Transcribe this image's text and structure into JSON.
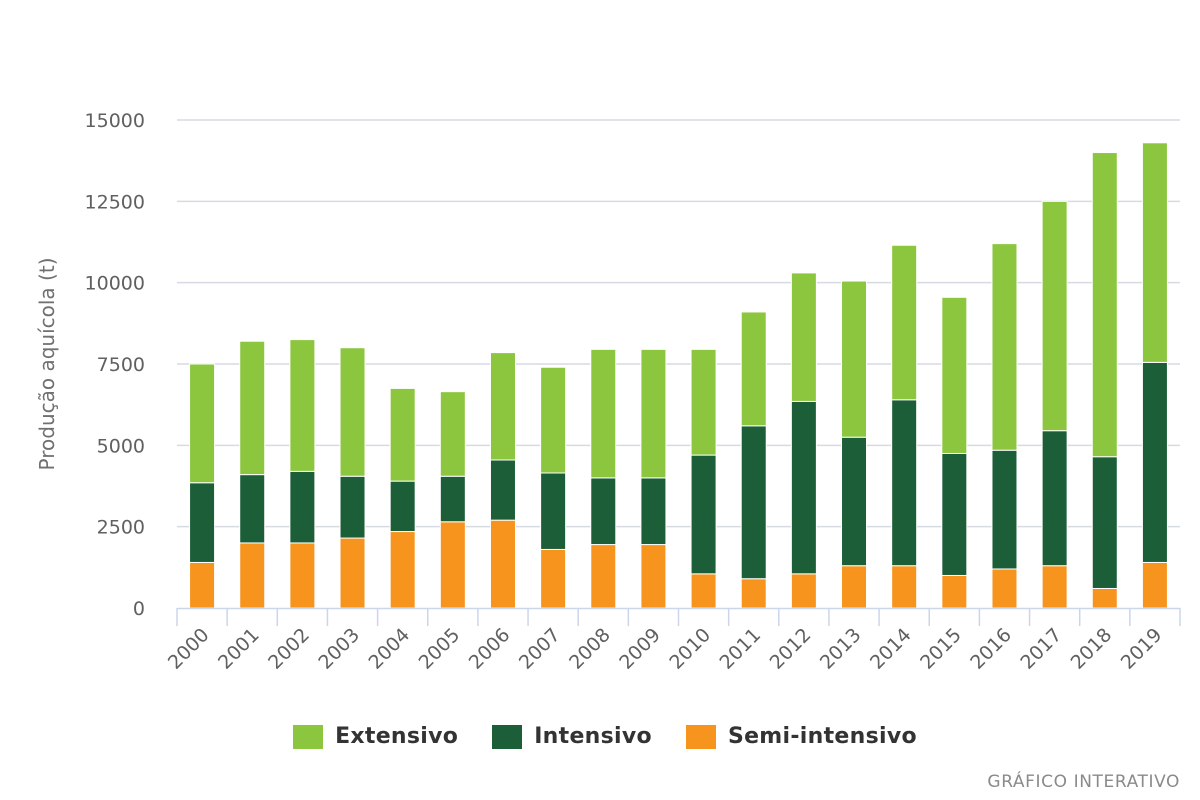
{
  "colors": {
    "extensivo": "#8cc63f",
    "intensivo": "#1b5e38",
    "semi_intensivo": "#f7941e",
    "grid": "#d6dbe3",
    "axis": "#ccd6eb"
  },
  "legend": {
    "extensivo": "Extensivo",
    "intensivo": "Intensivo",
    "semi_intensivo": "Semi-intensivo"
  },
  "credit": "GRÁFICO INTERATIVO",
  "chart_data": {
    "type": "bar",
    "stacked": true,
    "title": "",
    "xlabel": "",
    "ylabel": "Produção aquícola (t)",
    "ylim": [
      0,
      15000
    ],
    "yticks": [
      0,
      2500,
      5000,
      7500,
      10000,
      12500,
      15000
    ],
    "ytick_labels": [
      "0",
      "2500",
      "5000",
      "7500",
      "10000",
      "12500",
      "15000"
    ],
    "categories": [
      "2000",
      "2001",
      "2002",
      "2003",
      "2004",
      "2005",
      "2006",
      "2007",
      "2008",
      "2009",
      "2010",
      "2011",
      "2012",
      "2013",
      "2014",
      "2015",
      "2016",
      "2017",
      "2018",
      "2019"
    ],
    "series": [
      {
        "key": "semi_intensivo",
        "name": "Semi-intensivo",
        "values": [
          1400,
          2000,
          2000,
          2150,
          2350,
          2650,
          2700,
          1800,
          1950,
          1950,
          1050,
          900,
          1050,
          1300,
          1300,
          1000,
          1200,
          1300,
          600,
          1400
        ]
      },
      {
        "key": "intensivo",
        "name": "Intensivo",
        "values": [
          2450,
          2100,
          2200,
          1900,
          1550,
          1400,
          1850,
          2350,
          2050,
          2050,
          3650,
          4700,
          5300,
          3950,
          5100,
          3750,
          3650,
          4150,
          4050,
          6150
        ]
      },
      {
        "key": "extensivo",
        "name": "Extensivo",
        "values": [
          3650,
          4100,
          4050,
          3950,
          2850,
          2600,
          3300,
          3250,
          3950,
          3950,
          3250,
          3500,
          3950,
          4800,
          4750,
          4800,
          6350,
          7050,
          9350,
          6750
        ]
      }
    ],
    "legend_position": "bottom-center",
    "grid": true
  }
}
